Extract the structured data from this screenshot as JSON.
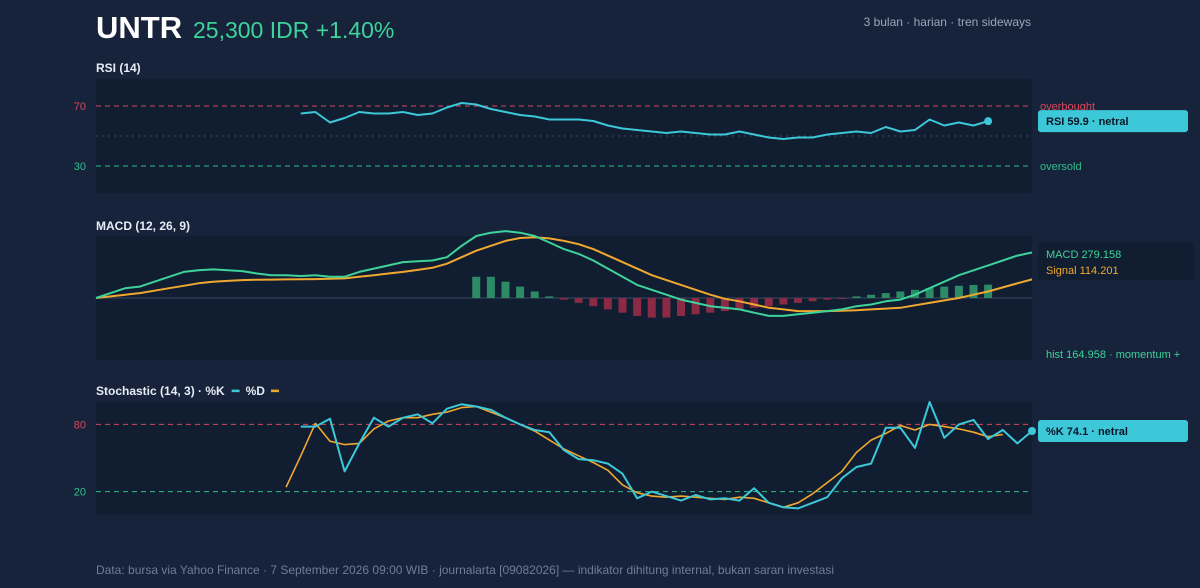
{
  "header": {
    "ticker": "UNTR",
    "price": "25,300 IDR +1.40%",
    "context": "3 bulan · harian · tren sideways"
  },
  "colors": {
    "background": "#16233a",
    "panel": "#111d30",
    "rsi_line": "#3cc8d8",
    "macd_line": "#3dd39a",
    "signal_line": "#f0a830",
    "hist_positive": "#2d8a66",
    "hist_negative": "#8a2a44",
    "overbought": "#d8485a",
    "oversold": "#2fbf8a",
    "k_line": "#3cc8d8",
    "d_line": "#f0a830",
    "price_up": "#3dd39a"
  },
  "chart_data": [
    {
      "type": "line",
      "title": "RSI (14)",
      "ylim": [
        12,
        88
      ],
      "ticks": [
        70,
        30
      ],
      "reference_lines": [
        {
          "value": 70,
          "label": "overbought"
        },
        {
          "value": 50,
          "label": ""
        },
        {
          "value": 30,
          "label": "oversold"
        }
      ],
      "series": [
        {
          "name": "RSI",
          "start_index": 14,
          "values": [
            65,
            66,
            59,
            62,
            66,
            65,
            65,
            66,
            64,
            65,
            69,
            72,
            71,
            68,
            66,
            64,
            63,
            61,
            61,
            61,
            60,
            57,
            55,
            54,
            53,
            52,
            53,
            52,
            51,
            51,
            53,
            51,
            49,
            48,
            49,
            49,
            51,
            52,
            53,
            52,
            56,
            53,
            54,
            61,
            57,
            59,
            57,
            59.9
          ]
        }
      ],
      "latest_label": "RSI 59.9 · netral"
    },
    {
      "type": "line",
      "title": "MACD (12, 26, 9)",
      "ylim": [
        -380,
        380
      ],
      "series": [
        {
          "name": "MACD",
          "values": [
            0,
            30,
            60,
            70,
            100,
            130,
            160,
            170,
            175,
            170,
            165,
            150,
            140,
            140,
            135,
            140,
            130,
            130,
            160,
            180,
            200,
            220,
            225,
            230,
            250,
            320,
            380,
            400,
            410,
            400,
            380,
            340,
            300,
            270,
            230,
            180,
            130,
            80,
            50,
            20,
            -10,
            -30,
            -50,
            -60,
            -70,
            -90,
            -110,
            -110,
            -100,
            -90,
            -80,
            -70,
            -50,
            -40,
            -20,
            -10,
            20,
            60,
            100,
            140,
            170,
            200,
            230,
            260,
            279.158
          ]
        },
        {
          "name": "Signal",
          "values": [
            0,
            10,
            20,
            30,
            45,
            60,
            75,
            90,
            100,
            105,
            110,
            112,
            113,
            114,
            115,
            116,
            118,
            120,
            130,
            140,
            150,
            160,
            172,
            185,
            210,
            250,
            290,
            320,
            350,
            368,
            372,
            365,
            350,
            330,
            300,
            260,
            220,
            180,
            140,
            110,
            80,
            50,
            20,
            -5,
            -20,
            -40,
            -60,
            -70,
            -80,
            -80,
            -80,
            -78,
            -75,
            -70,
            -65,
            -60,
            -45,
            -30,
            -15,
            0,
            20,
            40,
            65,
            90,
            114.201
          ]
        }
      ],
      "histogram_start": 26,
      "histogram": [
        130,
        130,
        100,
        70,
        40,
        10,
        -10,
        -30,
        -50,
        -70,
        -90,
        -110,
        -120,
        -120,
        -110,
        -100,
        -90,
        -80,
        -70,
        -60,
        -50,
        -40,
        -30,
        -20,
        -10,
        -5,
        10,
        20,
        30,
        40,
        50,
        60,
        70,
        75,
        80,
        82
      ],
      "legend": [
        "MACD 279.158",
        "Signal 114.201"
      ],
      "hist_label": "hist 164.958 · momentum +"
    },
    {
      "type": "line",
      "title": "Stochastic (14, 3) · %K",
      "legend": [
        "%K",
        "%D"
      ],
      "ylim": [
        0,
        100
      ],
      "ticks": [
        80,
        20
      ],
      "reference_lines": [
        {
          "value": 80,
          "label": ""
        },
        {
          "value": 20,
          "label": ""
        }
      ],
      "series": [
        {
          "name": "%K",
          "start_index": 14,
          "values": [
            78,
            78,
            85,
            38,
            63,
            86,
            78,
            86,
            89,
            81,
            94,
            98,
            96,
            93,
            86,
            80,
            75,
            73,
            57,
            49,
            48,
            45,
            36,
            14,
            20,
            16,
            12,
            17,
            13,
            14,
            12,
            23,
            10,
            6,
            5,
            10,
            15,
            32,
            42,
            45,
            77,
            77,
            59,
            100,
            68,
            80,
            84,
            67,
            75,
            63,
            74.1
          ]
        },
        {
          "name": "%D",
          "start_index": 13,
          "values": [
            24,
            52,
            81,
            65,
            62,
            63,
            76,
            83,
            86,
            86,
            89,
            91,
            95,
            96,
            91,
            86,
            80,
            74,
            66,
            58,
            52,
            46,
            39,
            26,
            19,
            16,
            15,
            16,
            15,
            14,
            13,
            15,
            14,
            10,
            6,
            10,
            18,
            28,
            38,
            55,
            66,
            72,
            79,
            75,
            80,
            78,
            76,
            73,
            69,
            71
          ]
        }
      ],
      "latest_label": "%K 74.1 · netral"
    }
  ],
  "footer": "Data: bursa via Yahoo Finance · 7 September 2026 09:00 WIB · journalarta [09082026] — indikator dihitung internal, bukan saran investasi"
}
